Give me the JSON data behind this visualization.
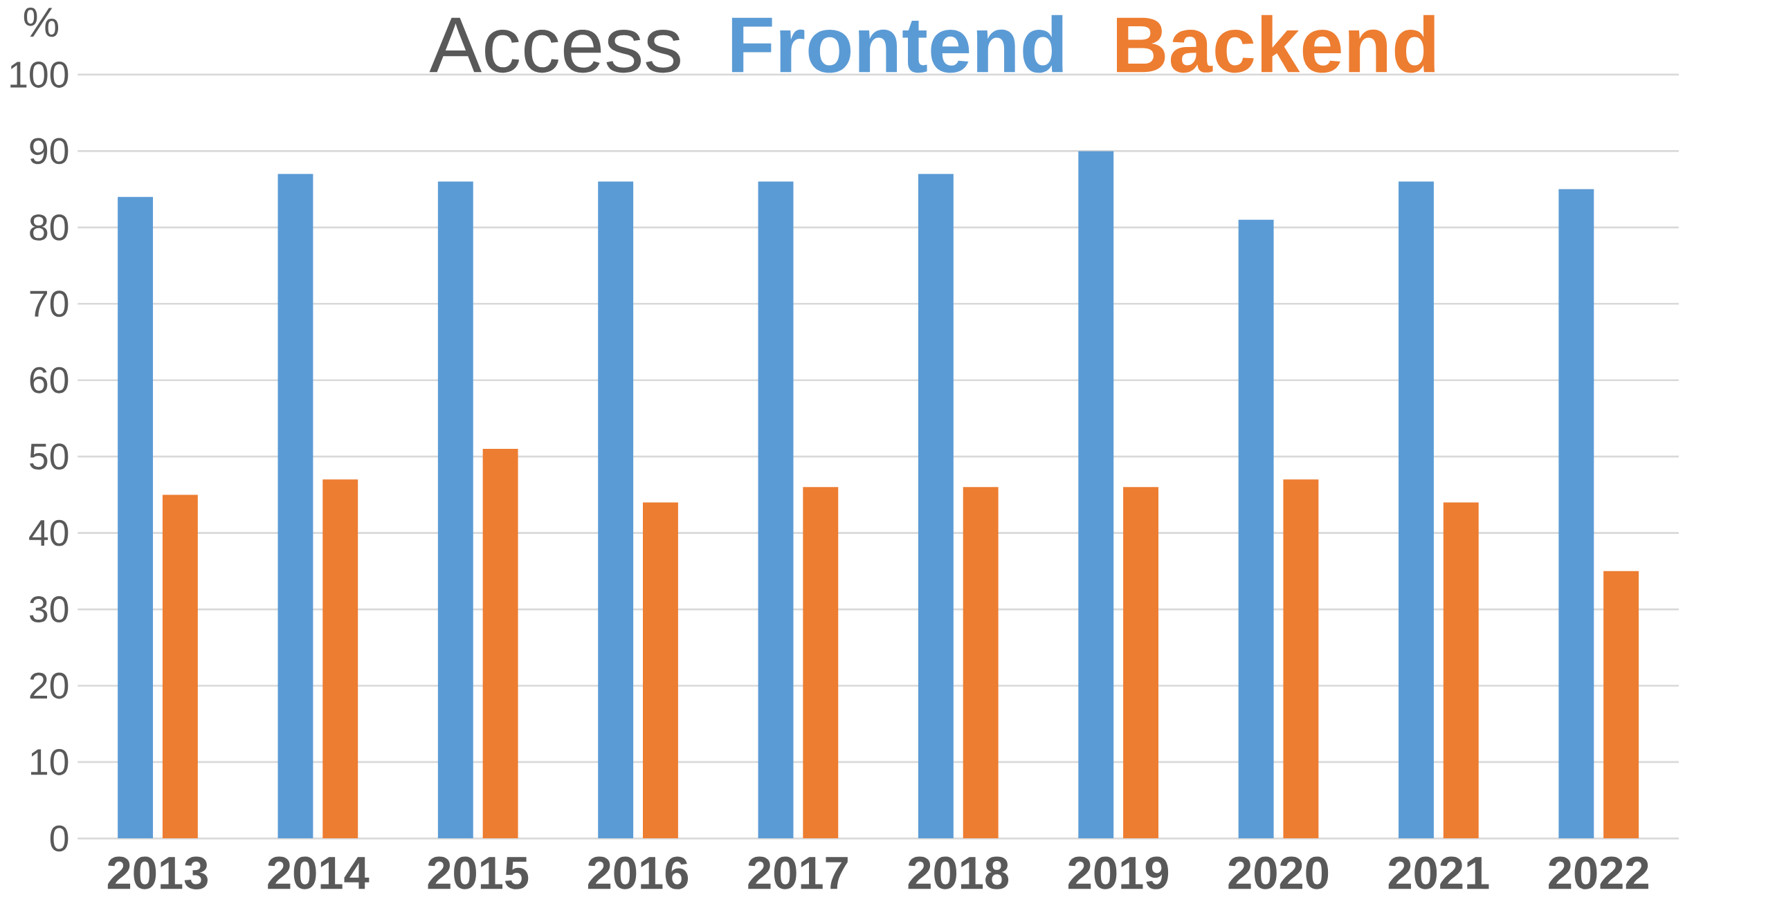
{
  "chart_data": {
    "type": "bar",
    "title": "Access",
    "ylabel": "%",
    "categories": [
      "2013",
      "2014",
      "2015",
      "2016",
      "2017",
      "2018",
      "2019",
      "2020",
      "2021",
      "2022"
    ],
    "series": [
      {
        "name": "Frontend",
        "color": "#5b9bd5",
        "values": [
          84,
          87,
          86,
          86,
          86,
          87,
          90,
          81,
          86,
          85
        ]
      },
      {
        "name": "Backend",
        "color": "#ed7d31",
        "values": [
          45,
          47,
          51,
          44,
          46,
          46,
          46,
          47,
          44,
          35
        ]
      }
    ],
    "ylim": [
      0,
      100
    ],
    "yticks": [
      0,
      10,
      20,
      30,
      40,
      50,
      60,
      70,
      80,
      90,
      100
    ],
    "grid": "y"
  }
}
